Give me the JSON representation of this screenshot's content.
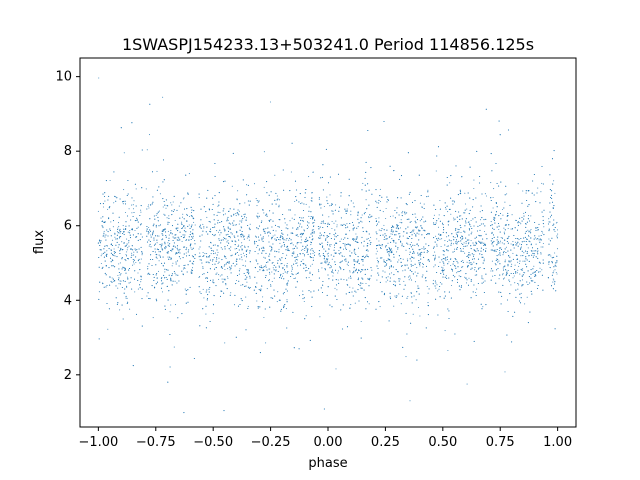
{
  "chart_data": {
    "type": "scatter",
    "title": "1SWASPJ154233.13+503241.0 Period 114856.125s",
    "xlabel": "phase",
    "ylabel": "flux",
    "xlim": [
      -1.08,
      1.08
    ],
    "ylim": [
      0.6,
      10.5
    ],
    "grid": false,
    "legend": "none",
    "point_color": "#1f77b4",
    "xticks": [
      -1.0,
      -0.75,
      -0.5,
      -0.25,
      0.0,
      0.25,
      0.5,
      0.75,
      1.0
    ],
    "xtick_labels": [
      "−1.00",
      "−0.75",
      "−0.50",
      "−0.25",
      "0.00",
      "0.25",
      "0.50",
      "0.75",
      "1.00"
    ],
    "yticks": [
      2,
      4,
      6,
      8,
      10
    ],
    "ytick_labels": [
      "2",
      "4",
      "6",
      "8",
      "10"
    ],
    "series": [
      {
        "x_range": [
          -1.0,
          1.0
        ],
        "approx_mean_flux": 5.4,
        "core_band": [
          4.3,
          6.8
        ],
        "visible_gaps_in_phase": [
          -0.8,
          -0.57,
          -0.33,
          -0.05,
          0.2,
          0.45,
          0.7,
          0.95
        ],
        "x": [
          -1.0,
          -0.95,
          -0.9,
          -0.85,
          -0.8,
          -0.75,
          -0.7,
          -0.65,
          -0.6,
          -0.55,
          -0.5,
          -0.45,
          -0.4,
          -0.35,
          -0.3,
          -0.25,
          -0.2,
          -0.15,
          -0.1,
          -0.05,
          0.0,
          0.05,
          0.1,
          0.15,
          0.2,
          0.25,
          0.3,
          0.35,
          0.4,
          0.45,
          0.5,
          0.55,
          0.6,
          0.65,
          0.7,
          0.75,
          0.8,
          0.85,
          0.9,
          0.95,
          1.0
        ],
        "y": [
          5.5,
          5.4,
          5.3,
          5.4,
          5.6,
          5.5,
          5.4,
          5.5,
          5.6,
          5.4,
          5.3,
          5.4,
          5.5,
          5.4,
          5.3,
          5.3,
          5.2,
          5.3,
          5.5,
          5.7,
          5.5,
          5.3,
          5.3,
          5.4,
          5.6,
          5.4,
          5.3,
          5.4,
          5.5,
          5.4,
          5.3,
          5.4,
          5.5,
          5.5,
          5.6,
          5.5,
          5.3,
          5.3,
          5.5,
          5.7,
          5.6
        ]
      }
    ]
  }
}
